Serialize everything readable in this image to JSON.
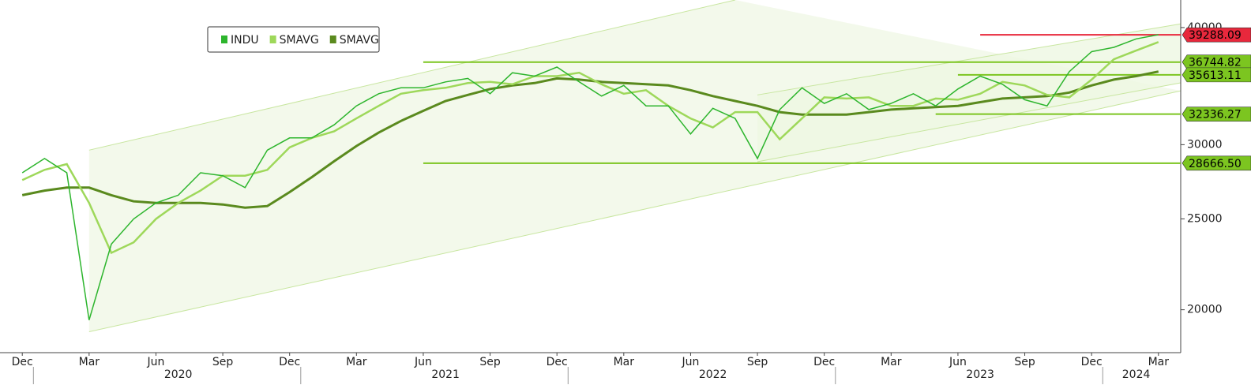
{
  "chart_data": {
    "type": "line",
    "log_scale": true,
    "xlim": [
      "2019-11",
      "2024-04"
    ],
    "ylim": [
      18000,
      42800
    ],
    "yticks": [
      20000,
      25000,
      30000,
      40000
    ],
    "xticks": [
      {
        "value": "2019-12",
        "label": "Dec"
      },
      {
        "value": "2020-03",
        "label": "Mar"
      },
      {
        "value": "2020-06",
        "label": "Jun"
      },
      {
        "value": "2020-09",
        "label": "Sep"
      },
      {
        "value": "2020-12",
        "label": "Dec"
      },
      {
        "value": "2021-03",
        "label": "Mar"
      },
      {
        "value": "2021-06",
        "label": "Jun"
      },
      {
        "value": "2021-09",
        "label": "Sep"
      },
      {
        "value": "2021-12",
        "label": "Dec"
      },
      {
        "value": "2022-03",
        "label": "Mar"
      },
      {
        "value": "2022-06",
        "label": "Jun"
      },
      {
        "value": "2022-09",
        "label": "Sep"
      },
      {
        "value": "2022-12",
        "label": "Dec"
      },
      {
        "value": "2023-03",
        "label": "Mar"
      },
      {
        "value": "2023-06",
        "label": "Jun"
      },
      {
        "value": "2023-09",
        "label": "Sep"
      },
      {
        "value": "2023-12",
        "label": "Dec"
      },
      {
        "value": "2024-03",
        "label": "Mar"
      }
    ],
    "year_labels": [
      {
        "value": "2020-07",
        "label": "2020"
      },
      {
        "value": "2021-07",
        "label": "2021"
      },
      {
        "value": "2022-07",
        "label": "2022"
      },
      {
        "value": "2023-07",
        "label": "2023"
      },
      {
        "value": "2024-02",
        "label": "2024"
      }
    ],
    "x": [
      "2019-12",
      "2020-01",
      "2020-02",
      "2020-03",
      "2020-04",
      "2020-05",
      "2020-06",
      "2020-07",
      "2020-08",
      "2020-09",
      "2020-10",
      "2020-11",
      "2020-12",
      "2021-01",
      "2021-02",
      "2021-03",
      "2021-04",
      "2021-05",
      "2021-06",
      "2021-07",
      "2021-08",
      "2021-09",
      "2021-10",
      "2021-11",
      "2021-12",
      "2022-01",
      "2022-02",
      "2022-03",
      "2022-04",
      "2022-05",
      "2022-06",
      "2022-07",
      "2022-08",
      "2022-09",
      "2022-10",
      "2022-11",
      "2022-12",
      "2023-01",
      "2023-02",
      "2023-03",
      "2023-04",
      "2023-05",
      "2023-06",
      "2023-07",
      "2023-08",
      "2023-09",
      "2023-10",
      "2023-11",
      "2023-12",
      "2024-01",
      "2024-02",
      "2024-03"
    ],
    "series": [
      {
        "name": "INDU",
        "color": "#2db52d",
        "width": 1.5,
        "values": [
          28000,
          29000,
          28000,
          19500,
          23500,
          25000,
          26000,
          26500,
          28000,
          27800,
          27000,
          29600,
          30500,
          30500,
          31500,
          33000,
          34000,
          34500,
          34500,
          35000,
          35300,
          34000,
          35800,
          35500,
          36300,
          35000,
          33800,
          34700,
          33000,
          33000,
          30800,
          32800,
          32000,
          29000,
          32700,
          34500,
          33200,
          34000,
          32700,
          33200,
          34000,
          33000,
          34400,
          35500,
          34800,
          33500,
          33000,
          35900,
          37700,
          38100,
          38900,
          39300
        ]
      },
      {
        "name": "SMAVG",
        "color": "#9ed85a",
        "width": 2.5,
        "values": [
          27500,
          28200,
          28600,
          26000,
          23000,
          23600,
          25000,
          26000,
          26800,
          27800,
          27800,
          28200,
          29800,
          30500,
          31000,
          32000,
          33000,
          34000,
          34300,
          34500,
          34900,
          35000,
          34800,
          35500,
          35500,
          35800,
          34800,
          34000,
          34300,
          33000,
          32000,
          31300,
          32500,
          32500,
          30400,
          32000,
          33700,
          33600,
          33700,
          33000,
          33000,
          33600,
          33500,
          34000,
          35000,
          34700,
          33900,
          33700,
          35200,
          37000,
          37800,
          38600
        ]
      },
      {
        "name": "SMAVG",
        "color": "#5a8a1e",
        "width": 3,
        "values": [
          26500,
          26800,
          27000,
          27000,
          26500,
          26100,
          26000,
          26000,
          26000,
          25900,
          25700,
          25800,
          26700,
          27700,
          28800,
          29900,
          30900,
          31800,
          32600,
          33400,
          33900,
          34400,
          34700,
          34900,
          35300,
          35200,
          35000,
          34900,
          34800,
          34700,
          34300,
          33800,
          33400,
          33000,
          32500,
          32300,
          32300,
          32300,
          32500,
          32700,
          32800,
          32900,
          33000,
          33300,
          33600,
          33700,
          33800,
          34100,
          34700,
          35200,
          35500,
          35900
        ]
      }
    ],
    "levels": [
      {
        "y": 39288.09,
        "start": "2023-07",
        "color": "#e8283c"
      },
      {
        "y": 36744.82,
        "start": "2021-06",
        "color": "#7cc520"
      },
      {
        "y": 35613.11,
        "start": "2023-06",
        "color": "#7cc520"
      },
      {
        "y": 32336.27,
        "start": "2023-05",
        "color": "#7cc520"
      },
      {
        "y": {
          "value": 28666.5,
          "label": "28666.50"
        },
        "start": "2021-06",
        "color": "#7cc520"
      }
    ],
    "channels": [
      {
        "upper": {
          "x": [
            "2020-03",
            "2022-08"
          ],
          "y": [
            29600,
            42800
          ]
        },
        "lower": {
          "x": [
            "2020-03",
            "2024-04"
          ],
          "y": [
            18950,
            34240
          ]
        }
      },
      {
        "upper": {
          "x": [
            "2022-09",
            "2024-04"
          ],
          "y": [
            33900,
            40360
          ]
        },
        "lower": {
          "x": [
            "2022-09",
            "2024-04"
          ],
          "y": [
            28770,
            34920
          ]
        }
      }
    ]
  }
}
